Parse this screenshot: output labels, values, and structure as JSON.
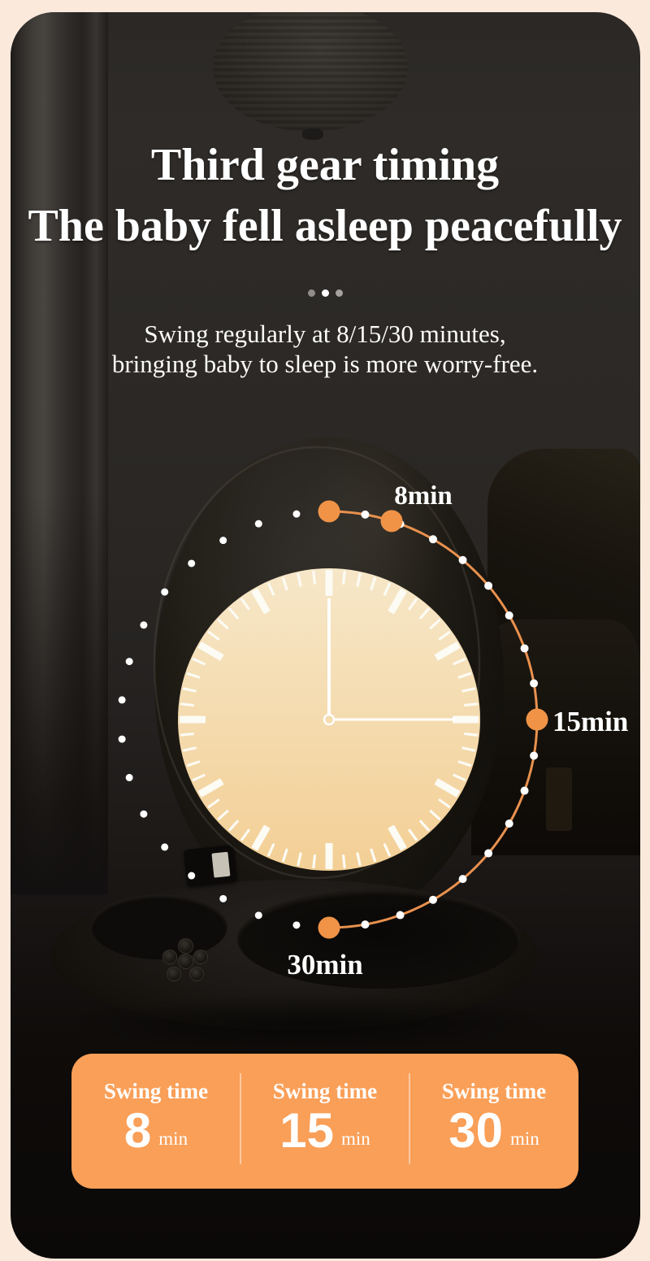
{
  "header": {
    "title_line1": "Third gear timing",
    "title_line2": "The baby fell asleep peacefully",
    "subtitle_line1": "Swing regularly at 8/15/30 minutes,",
    "subtitle_line2": "bringing baby to sleep is more worry-free."
  },
  "diagram": {
    "type": "clock-timer-arc",
    "clock_hands": {
      "minute_hand_angle_deg": 0,
      "hour_hand_angle_deg": 90
    },
    "arc_start_angle_deg": -90,
    "arc_end_angle_deg": 90,
    "markers": [
      {
        "label": "8min",
        "angle_deg": -72.5
      },
      {
        "label": "15min",
        "angle_deg": 0
      },
      {
        "label": "30min",
        "angle_deg": 90
      }
    ]
  },
  "swing_cards": [
    {
      "label": "Swing time",
      "value": "8",
      "unit": "min"
    },
    {
      "label": "Swing time",
      "value": "15",
      "unit": "min"
    },
    {
      "label": "Swing time",
      "value": "30",
      "unit": "min"
    }
  ],
  "colors": {
    "page_background": "#fbe9dc",
    "panel_dark": "#2c2926",
    "accent_arc_orange": "#E9914E",
    "marker_dot_orange": "#F09347",
    "card_orange": "#F99F58",
    "clock_face_top": "#f6e7c8",
    "clock_face_bottom": "#f3cf95",
    "text_white": "#ffffff"
  }
}
